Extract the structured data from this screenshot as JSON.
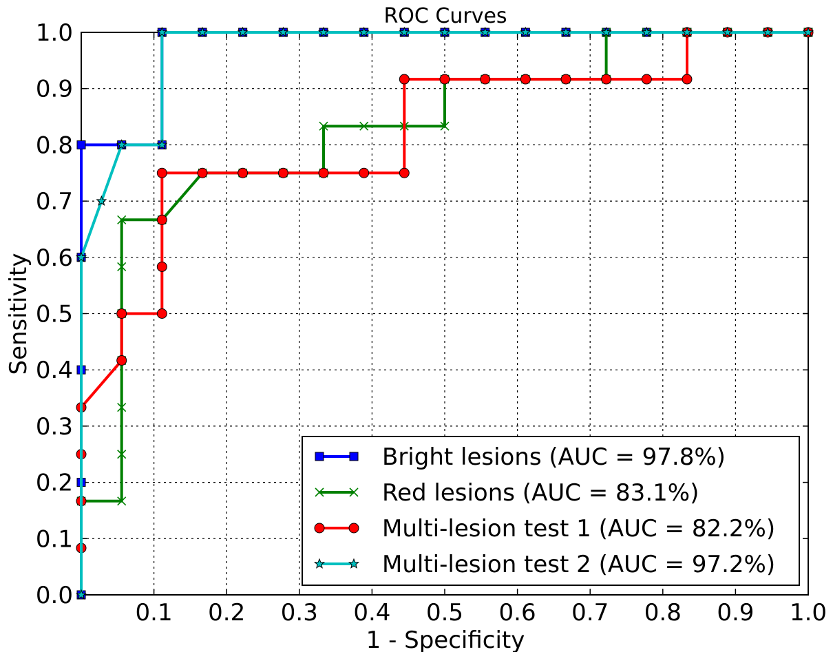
{
  "chart_data": {
    "type": "line",
    "title": "ROC Curves",
    "xlabel": "1 - Specificity",
    "ylabel": "Sensitivity",
    "xlim": [
      0,
      1
    ],
    "ylim": [
      0,
      1
    ],
    "x_ticks": [
      "0.1",
      "0.2",
      "0.3",
      "0.4",
      "0.5",
      "0.6",
      "0.7",
      "0.8",
      "0.9",
      "1.0"
    ],
    "y_ticks": [
      "0.0",
      "0.1",
      "0.2",
      "0.3",
      "0.4",
      "0.5",
      "0.6",
      "0.7",
      "0.8",
      "0.9",
      "1.0"
    ],
    "grid": true,
    "legend_position": "lower-right",
    "series": [
      {
        "name": "Bright lesions (AUC = 97.8%)",
        "color": "#0000ff",
        "marker": "square",
        "x": [
          0,
          0,
          0,
          0,
          0,
          0.0556,
          0.1111,
          0.1111,
          0.1667,
          0.2222,
          0.2778,
          0.3333,
          0.3889,
          0.4444,
          0.5,
          0.5556,
          0.6111,
          0.6667,
          0.7222,
          0.7778,
          0.8333,
          0.8889,
          0.9444,
          1.0
        ],
        "y": [
          0,
          0.2,
          0.4,
          0.6,
          0.8,
          0.8,
          0.8,
          1.0,
          1.0,
          1.0,
          1.0,
          1.0,
          1.0,
          1.0,
          1.0,
          1.0,
          1.0,
          1.0,
          1.0,
          1.0,
          1.0,
          1.0,
          1.0,
          1.0
        ]
      },
      {
        "name": "Red lesions (AUC = 83.1%)",
        "color": "#008000",
        "marker": "x",
        "x": [
          0,
          0.0556,
          0.0556,
          0.0556,
          0.0556,
          0.0556,
          0.0556,
          0.0556,
          0.1111,
          0.1667,
          0.2222,
          0.2778,
          0.3333,
          0.3333,
          0.3889,
          0.4444,
          0.5,
          0.5,
          0.5556,
          0.6111,
          0.6667,
          0.7222,
          0.7222,
          0.7778,
          0.8333,
          0.8889,
          0.9444,
          1.0
        ],
        "y": [
          0.1667,
          0.1667,
          0.25,
          0.3333,
          0.4167,
          0.5,
          0.5833,
          0.6667,
          0.6667,
          0.75,
          0.75,
          0.75,
          0.75,
          0.8333,
          0.8333,
          0.8333,
          0.8333,
          0.9167,
          0.9167,
          0.9167,
          0.9167,
          0.9167,
          1.0,
          1.0,
          1.0,
          1.0,
          1.0,
          1.0
        ]
      },
      {
        "name": "Multi-lesion test 1 (AUC = 82.2%)",
        "color": "#ff0000",
        "marker": "circle",
        "x": [
          0,
          0,
          0,
          0,
          0.0556,
          0.0556,
          0.1111,
          0.1111,
          0.1111,
          0.1111,
          0.1667,
          0.2222,
          0.2778,
          0.3333,
          0.3889,
          0.4444,
          0.4444,
          0.5,
          0.5556,
          0.6111,
          0.6667,
          0.7222,
          0.7778,
          0.8333,
          0.8333,
          0.8889,
          0.9444,
          1.0
        ],
        "y": [
          0.0833,
          0.1667,
          0.25,
          0.3333,
          0.4167,
          0.5,
          0.5,
          0.5833,
          0.6667,
          0.75,
          0.75,
          0.75,
          0.75,
          0.75,
          0.75,
          0.75,
          0.9167,
          0.9167,
          0.9167,
          0.9167,
          0.9167,
          0.9167,
          0.9167,
          0.9167,
          1.0,
          1.0,
          1.0,
          1.0
        ]
      },
      {
        "name": "Multi-lesion test 2 (AUC = 97.2%)",
        "color": "#00bfbf",
        "marker": "star",
        "x": [
          0,
          0,
          0.0278,
          0.0556,
          0.1111,
          0.1111,
          0.1667,
          0.2222,
          0.2778,
          0.3333,
          0.3889,
          0.4444,
          0.5,
          0.5556,
          0.6111,
          0.6667,
          0.7222,
          0.7778,
          0.8333,
          0.8889,
          0.9444,
          1.0
        ],
        "y": [
          0,
          0.6,
          0.7,
          0.8,
          0.8,
          1.0,
          1.0,
          1.0,
          1.0,
          1.0,
          1.0,
          1.0,
          1.0,
          1.0,
          1.0,
          1.0,
          1.0,
          1.0,
          1.0,
          1.0,
          1.0,
          1.0
        ]
      }
    ]
  }
}
